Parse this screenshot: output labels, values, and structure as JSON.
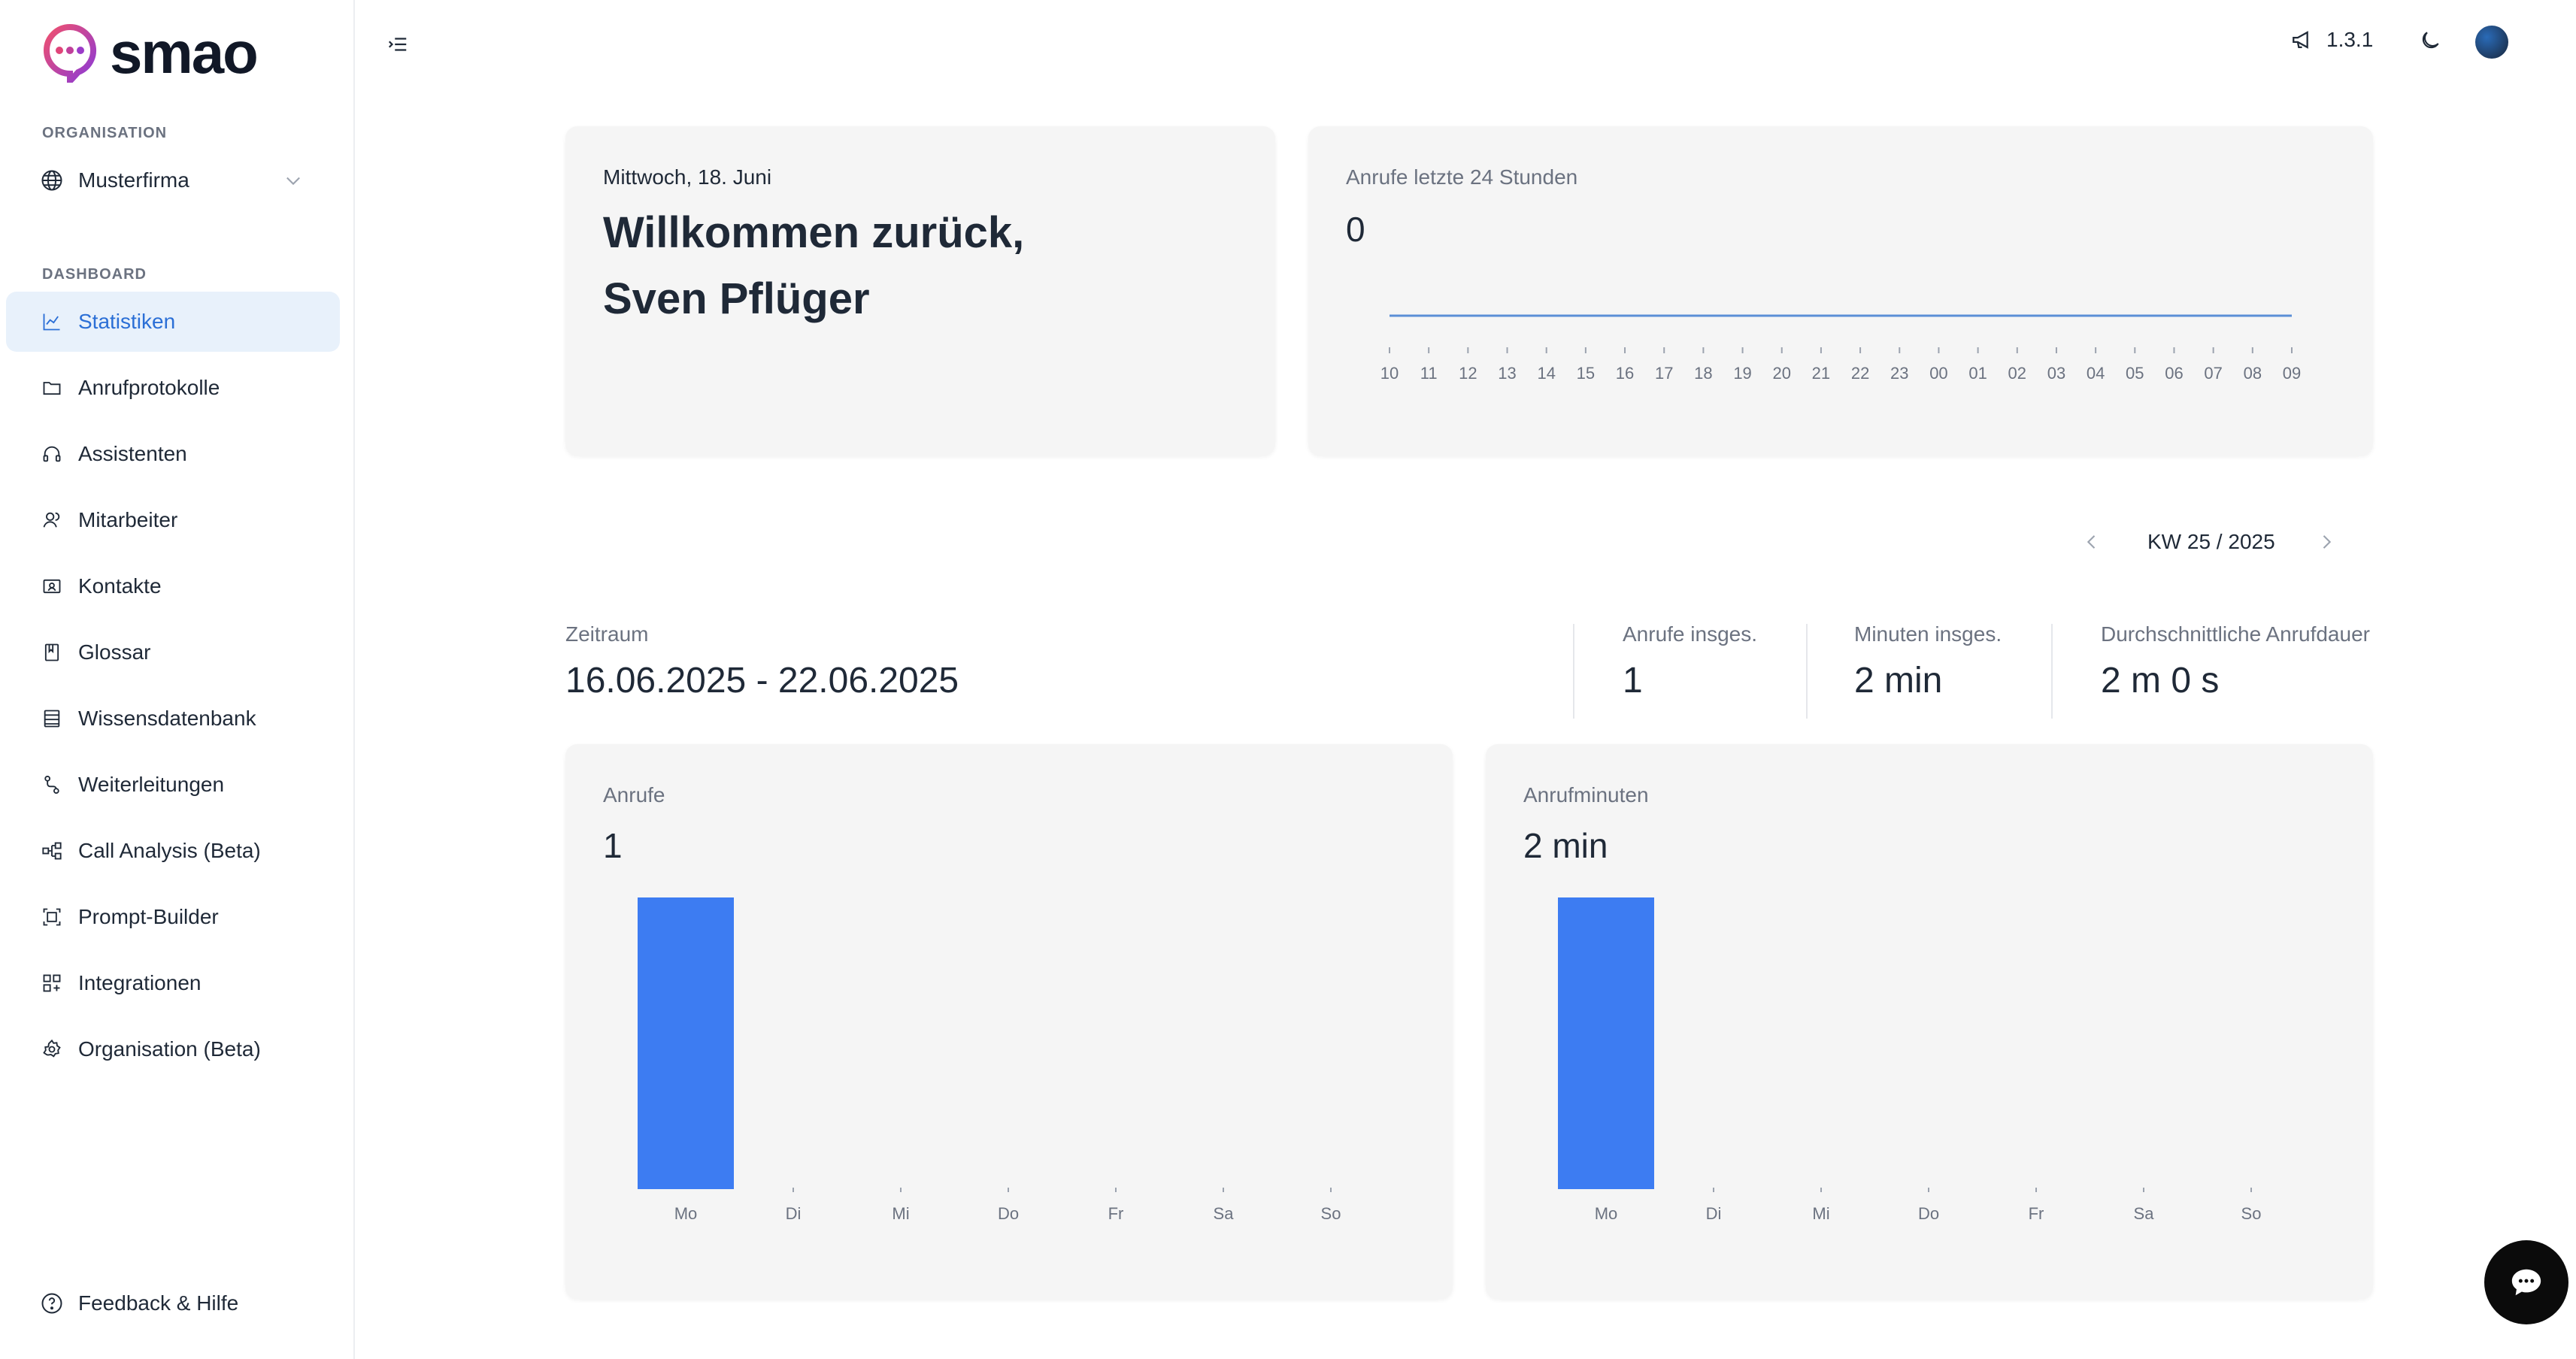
{
  "app": {
    "logo_text": "smao"
  },
  "sidebar": {
    "org_label": "ORGANISATION",
    "org_name": "Musterfirma",
    "dashboard_label": "DASHBOARD",
    "items": [
      {
        "label": "Statistiken",
        "icon": "chart-line-icon",
        "active": true
      },
      {
        "label": "Anrufprotokolle",
        "icon": "folder-icon"
      },
      {
        "label": "Assistenten",
        "icon": "headphones-icon"
      },
      {
        "label": "Mitarbeiter",
        "icon": "users-icon"
      },
      {
        "label": "Kontakte",
        "icon": "contact-card-icon"
      },
      {
        "label": "Glossar",
        "icon": "book-icon"
      },
      {
        "label": "Wissensdatenbank",
        "icon": "database-icon"
      },
      {
        "label": "Weiterleitungen",
        "icon": "routing-icon"
      },
      {
        "label": "Call Analysis (Beta)",
        "icon": "workflow-icon"
      },
      {
        "label": "Prompt-Builder",
        "icon": "scan-icon"
      },
      {
        "label": "Integrationen",
        "icon": "grid-plus-icon"
      },
      {
        "label": "Organisation (Beta)",
        "icon": "gear-icon"
      }
    ],
    "feedback_label": "Feedback & Hilfe"
  },
  "topbar": {
    "version": "1.3.1"
  },
  "welcome": {
    "date": "Mittwoch, 18. Juni",
    "title_line1": "Willkommen zurück,",
    "title_line2": "Sven Pflüger"
  },
  "calls24": {
    "label": "Anrufe letzte 24 Stunden",
    "value": "0"
  },
  "week_nav": {
    "label": "KW 25 / 2025"
  },
  "summary": {
    "period_label": "Zeitraum",
    "period_value": "16.06.2025 - 22.06.2025",
    "calls_label": "Anrufe insges.",
    "calls_value": "1",
    "minutes_label": "Minuten insges.",
    "minutes_value": "2 min",
    "avg_label": "Durchschnittliche Anrufdauer",
    "avg_value": "2 m 0 s"
  },
  "calls_card": {
    "label": "Anrufe",
    "value": "1"
  },
  "minutes_card": {
    "label": "Anrufminuten",
    "value": "2 min"
  },
  "colors": {
    "accent": "#3d7cf2",
    "active_bg": "#e8f1fb",
    "active_text": "#2b6fd6",
    "line": "#5b8fd6"
  },
  "chart_data": [
    {
      "type": "line",
      "title": "Anrufe letzte 24 Stunden",
      "x": [
        "10",
        "11",
        "12",
        "13",
        "14",
        "15",
        "16",
        "17",
        "18",
        "19",
        "20",
        "21",
        "22",
        "23",
        "00",
        "01",
        "02",
        "03",
        "04",
        "05",
        "06",
        "07",
        "08",
        "09"
      ],
      "values": [
        0,
        0,
        0,
        0,
        0,
        0,
        0,
        0,
        0,
        0,
        0,
        0,
        0,
        0,
        0,
        0,
        0,
        0,
        0,
        0,
        0,
        0,
        0,
        0
      ]
    },
    {
      "type": "bar",
      "title": "Anrufe",
      "categories": [
        "Mo",
        "Di",
        "Mi",
        "Do",
        "Fr",
        "Sa",
        "So"
      ],
      "values": [
        1,
        0,
        0,
        0,
        0,
        0,
        0
      ]
    },
    {
      "type": "bar",
      "title": "Anrufminuten",
      "categories": [
        "Mo",
        "Di",
        "Mi",
        "Do",
        "Fr",
        "Sa",
        "So"
      ],
      "values": [
        2,
        0,
        0,
        0,
        0,
        0,
        0
      ]
    }
  ]
}
